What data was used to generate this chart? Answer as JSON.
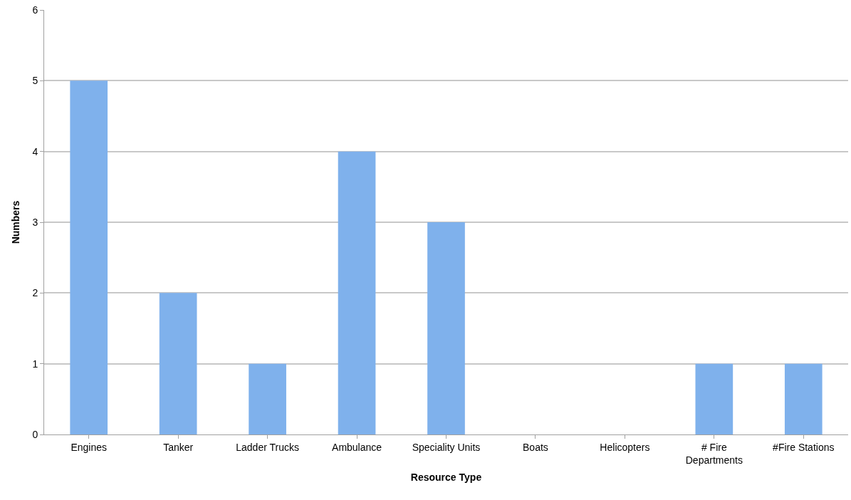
{
  "chart_data": {
    "type": "bar",
    "xlabel": "Resource Type",
    "ylabel": "Numbers",
    "categories": [
      "Engines",
      "Tanker",
      "Ladder Trucks",
      "Ambulance",
      "Speciality Units",
      "Boats",
      "Helicopters",
      "# Fire Departments",
      "#Fire Stations"
    ],
    "values": [
      5,
      2,
      1,
      4,
      3,
      0,
      0,
      1,
      1
    ],
    "color": "#7fb1ec",
    "ylim": [
      0,
      6
    ],
    "yticks": [
      0,
      1,
      2,
      3,
      4,
      5,
      6
    ],
    "grid": "y"
  }
}
